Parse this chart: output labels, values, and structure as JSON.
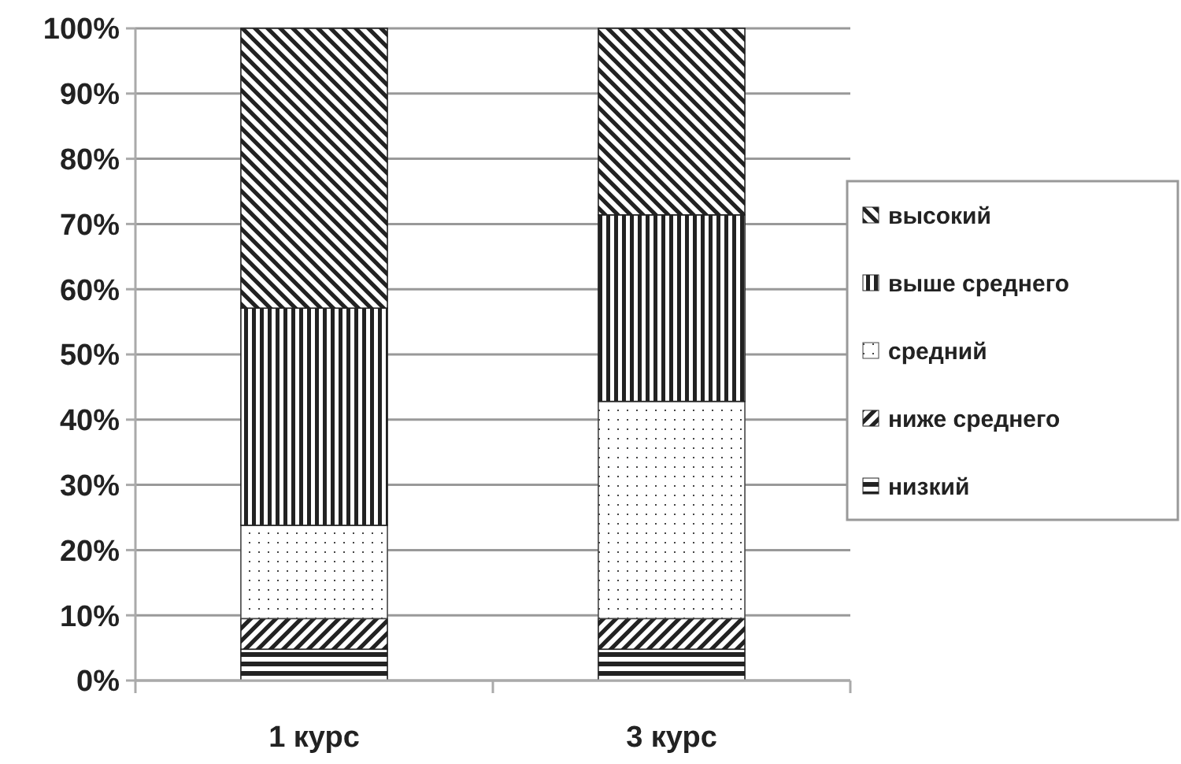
{
  "chart_data": {
    "type": "bar",
    "stacked": true,
    "categories": [
      "1 курс",
      "3 курс"
    ],
    "series": [
      {
        "name": "низкий",
        "color": "#222222",
        "values": [
          4.8,
          4.8
        ]
      },
      {
        "name": "ниже среднего",
        "color": "#222222",
        "values": [
          4.7,
          4.7
        ]
      },
      {
        "name": "средний",
        "color": "#444444",
        "values": [
          14.3,
          33.3
        ]
      },
      {
        "name": "выше среднего",
        "color": "#222222",
        "values": [
          33.3,
          28.6
        ]
      },
      {
        "name": "высокий",
        "color": "#222222",
        "values": [
          42.9,
          28.6
        ]
      }
    ],
    "ylim": [
      0,
      100
    ],
    "yticks": [
      {
        "value": 0,
        "label": "0%"
      },
      {
        "value": 10,
        "label": "10%"
      },
      {
        "value": 20,
        "label": "20%"
      },
      {
        "value": 30,
        "label": "30%"
      },
      {
        "value": 40,
        "label": "40%"
      },
      {
        "value": 50,
        "label": "50%"
      },
      {
        "value": 60,
        "label": "60%"
      },
      {
        "value": 70,
        "label": "70%"
      },
      {
        "value": 80,
        "label": "80%"
      },
      {
        "value": 90,
        "label": "90%"
      },
      {
        "value": 100,
        "label": "100%"
      }
    ],
    "grid": "y",
    "legend": "right"
  }
}
